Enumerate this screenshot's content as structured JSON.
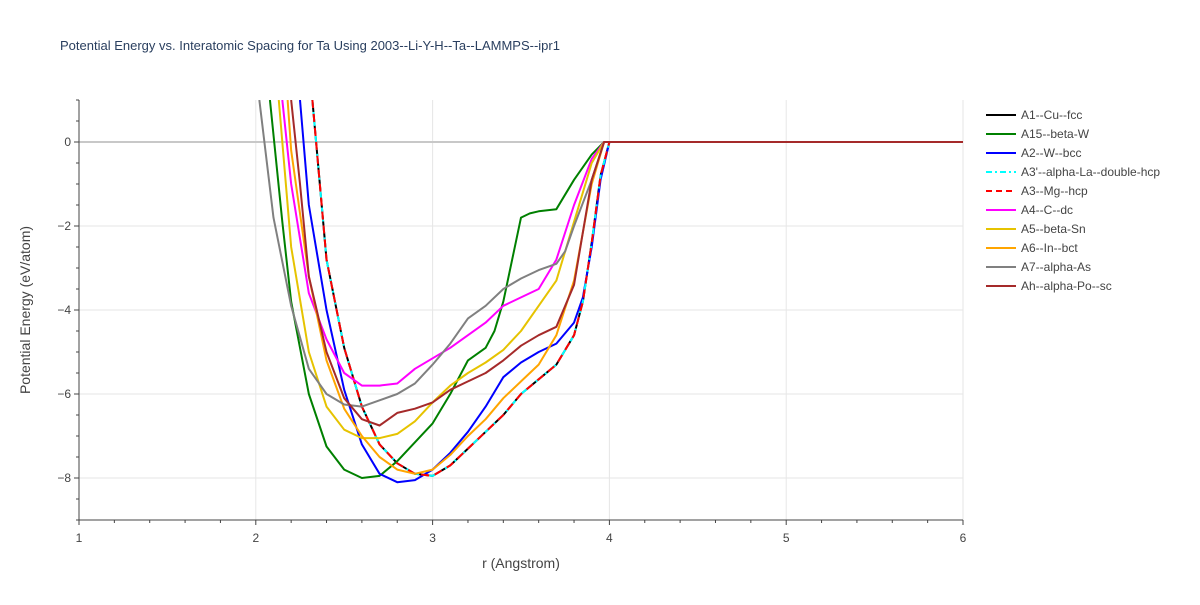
{
  "chart_data": {
    "type": "line",
    "title": "Potential Energy vs. Interatomic Spacing for Ta Using 2003--Li-Y-H--Ta--LAMMPS--ipr1",
    "xlabel": "r (Angstrom)",
    "ylabel": "Potential Energy (eV/atom)",
    "xlim": [
      1,
      6
    ],
    "ylim": [
      -9,
      1
    ],
    "xticks": [
      1,
      2,
      3,
      4,
      5,
      6
    ],
    "yticks": [
      0,
      -2,
      -4,
      -6,
      -8
    ],
    "grid": true,
    "legend_position": "right",
    "series": [
      {
        "name": "A1--Cu--fcc",
        "color": "#000000",
        "dash": "solid",
        "x": [
          2.32,
          2.4,
          2.5,
          2.6,
          2.7,
          2.8,
          2.9,
          3.0,
          3.1,
          3.2,
          3.3,
          3.4,
          3.5,
          3.6,
          3.7,
          3.8,
          3.85,
          3.9,
          3.95,
          4.0,
          4.5,
          5.0,
          5.5,
          6.0
        ],
        "y": [
          1.0,
          -2.8,
          -4.9,
          -6.3,
          -7.2,
          -7.65,
          -7.9,
          -7.95,
          -7.7,
          -7.3,
          -6.9,
          -6.5,
          -6.0,
          -5.65,
          -5.3,
          -4.6,
          -3.8,
          -2.4,
          -0.8,
          0,
          0,
          0,
          0,
          0
        ]
      },
      {
        "name": "A15--beta-W",
        "color": "#008000",
        "dash": "solid",
        "x": [
          2.08,
          2.15,
          2.2,
          2.3,
          2.4,
          2.5,
          2.6,
          2.7,
          2.8,
          2.9,
          3.0,
          3.1,
          3.2,
          3.3,
          3.35,
          3.4,
          3.45,
          3.5,
          3.55,
          3.6,
          3.7,
          3.8,
          3.9,
          3.97,
          4.0,
          4.5,
          5.0,
          5.5,
          6.0
        ],
        "y": [
          1.0,
          -1.9,
          -3.8,
          -6.0,
          -7.25,
          -7.8,
          -8.0,
          -7.95,
          -7.6,
          -7.15,
          -6.7,
          -6.0,
          -5.2,
          -4.9,
          -4.5,
          -3.8,
          -2.8,
          -1.8,
          -1.7,
          -1.65,
          -1.6,
          -0.9,
          -0.3,
          0,
          0,
          0,
          0,
          0,
          0
        ]
      },
      {
        "name": "A2--W--bcc",
        "color": "#0000ff",
        "dash": "solid",
        "x": [
          2.25,
          2.3,
          2.4,
          2.5,
          2.6,
          2.7,
          2.8,
          2.9,
          3.0,
          3.1,
          3.2,
          3.3,
          3.4,
          3.5,
          3.6,
          3.7,
          3.8,
          3.85,
          3.9,
          3.95,
          4.0,
          4.5,
          5.0,
          5.5,
          6.0
        ],
        "y": [
          1.0,
          -1.5,
          -4.0,
          -5.9,
          -7.2,
          -7.9,
          -8.1,
          -8.05,
          -7.8,
          -7.4,
          -6.9,
          -6.3,
          -5.6,
          -5.25,
          -5.0,
          -4.8,
          -4.3,
          -3.7,
          -2.5,
          -0.9,
          0,
          0,
          0,
          0,
          0
        ]
      },
      {
        "name": "A3'--alpha-La--double-hcp",
        "color": "#00ffff",
        "dash": "dashdot",
        "x": [
          2.32,
          2.4,
          2.5,
          2.6,
          2.7,
          2.8,
          2.9,
          3.0,
          3.1,
          3.2,
          3.3,
          3.4,
          3.5,
          3.6,
          3.7,
          3.8,
          3.85,
          3.9,
          3.95,
          4.0,
          4.5,
          5.0,
          5.5,
          6.0
        ],
        "y": [
          1.0,
          -2.8,
          -4.9,
          -6.3,
          -7.2,
          -7.65,
          -7.9,
          -7.95,
          -7.7,
          -7.3,
          -6.9,
          -6.5,
          -6.0,
          -5.65,
          -5.3,
          -4.6,
          -3.8,
          -2.4,
          -0.8,
          0,
          0,
          0,
          0,
          0
        ]
      },
      {
        "name": "A3--Mg--hcp",
        "color": "#ff0000",
        "dash": "dash",
        "x": [
          2.32,
          2.4,
          2.5,
          2.6,
          2.7,
          2.8,
          2.9,
          3.0,
          3.1,
          3.2,
          3.3,
          3.4,
          3.5,
          3.6,
          3.7,
          3.8,
          3.85,
          3.9,
          3.95,
          4.0,
          4.5,
          5.0,
          5.5,
          6.0
        ],
        "y": [
          1.0,
          -2.8,
          -4.9,
          -6.3,
          -7.2,
          -7.65,
          -7.9,
          -7.95,
          -7.7,
          -7.3,
          -6.9,
          -6.5,
          -6.0,
          -5.65,
          -5.3,
          -4.6,
          -3.8,
          -2.4,
          -0.8,
          0,
          0,
          0,
          0,
          0
        ]
      },
      {
        "name": "A4--C--dc",
        "color": "#ff00ff",
        "dash": "solid",
        "x": [
          2.15,
          2.2,
          2.3,
          2.4,
          2.5,
          2.6,
          2.7,
          2.8,
          2.9,
          3.0,
          3.1,
          3.2,
          3.3,
          3.4,
          3.5,
          3.6,
          3.7,
          3.8,
          3.9,
          3.97,
          4.0,
          4.5,
          5.0,
          5.5,
          6.0
        ],
        "y": [
          1.0,
          -1.0,
          -3.6,
          -4.7,
          -5.5,
          -5.8,
          -5.8,
          -5.75,
          -5.4,
          -5.15,
          -4.9,
          -4.6,
          -4.3,
          -3.9,
          -3.7,
          -3.5,
          -2.8,
          -1.5,
          -0.4,
          0,
          0,
          0,
          0,
          0,
          0
        ]
      },
      {
        "name": "A5--beta-Sn",
        "color": "#e6c300",
        "dash": "solid",
        "x": [
          2.13,
          2.2,
          2.3,
          2.4,
          2.5,
          2.6,
          2.7,
          2.8,
          2.9,
          3.0,
          3.1,
          3.2,
          3.3,
          3.4,
          3.5,
          3.6,
          3.7,
          3.8,
          3.9,
          3.97,
          4.0,
          4.5,
          5.0,
          5.5,
          6.0
        ],
        "y": [
          1.0,
          -2.5,
          -5.0,
          -6.3,
          -6.85,
          -7.05,
          -7.05,
          -6.95,
          -6.65,
          -6.2,
          -5.8,
          -5.5,
          -5.25,
          -4.95,
          -4.5,
          -3.9,
          -3.3,
          -1.9,
          -0.5,
          0,
          0,
          0,
          0,
          0,
          0
        ]
      },
      {
        "name": "A6--In--bct",
        "color": "#ffa500",
        "dash": "solid",
        "x": [
          2.18,
          2.2,
          2.3,
          2.4,
          2.5,
          2.6,
          2.7,
          2.8,
          2.9,
          3.0,
          3.1,
          3.2,
          3.3,
          3.4,
          3.5,
          3.6,
          3.7,
          3.8,
          3.9,
          3.97,
          4.0,
          4.5,
          5.0,
          5.5,
          6.0
        ],
        "y": [
          1.0,
          -0.2,
          -3.2,
          -5.2,
          -6.35,
          -7.0,
          -7.5,
          -7.8,
          -7.9,
          -7.8,
          -7.45,
          -7.0,
          -6.6,
          -6.1,
          -5.7,
          -5.3,
          -4.6,
          -3.3,
          -1.0,
          0,
          0,
          0,
          0,
          0,
          0
        ]
      },
      {
        "name": "A7--alpha-As",
        "color": "#808080",
        "dash": "solid",
        "x": [
          2.02,
          2.1,
          2.2,
          2.3,
          2.4,
          2.5,
          2.6,
          2.7,
          2.8,
          2.9,
          3.0,
          3.1,
          3.2,
          3.3,
          3.4,
          3.5,
          3.6,
          3.7,
          3.75,
          3.8,
          3.9,
          3.97,
          4.0,
          4.5,
          5.0,
          5.5,
          6.0
        ],
        "y": [
          1.0,
          -1.8,
          -3.9,
          -5.4,
          -6.0,
          -6.25,
          -6.3,
          -6.15,
          -6.0,
          -5.75,
          -5.3,
          -4.8,
          -4.2,
          -3.9,
          -3.5,
          -3.25,
          -3.05,
          -2.9,
          -2.6,
          -2.0,
          -0.9,
          0,
          0,
          0,
          0,
          0,
          0
        ]
      },
      {
        "name": "Ah--alpha-Po--sc",
        "color": "#a52a2a",
        "dash": "solid",
        "x": [
          2.2,
          2.25,
          2.3,
          2.4,
          2.5,
          2.6,
          2.7,
          2.8,
          2.9,
          3.0,
          3.1,
          3.2,
          3.3,
          3.4,
          3.5,
          3.6,
          3.7,
          3.8,
          3.9,
          3.97,
          4.0,
          4.5,
          5.0,
          5.5,
          6.0
        ],
        "y": [
          1.0,
          -1.0,
          -3.2,
          -5.0,
          -6.1,
          -6.6,
          -6.75,
          -6.45,
          -6.35,
          -6.2,
          -5.9,
          -5.7,
          -5.5,
          -5.2,
          -4.85,
          -4.6,
          -4.4,
          -3.4,
          -0.9,
          0,
          0,
          0,
          0,
          0,
          0
        ]
      }
    ]
  }
}
